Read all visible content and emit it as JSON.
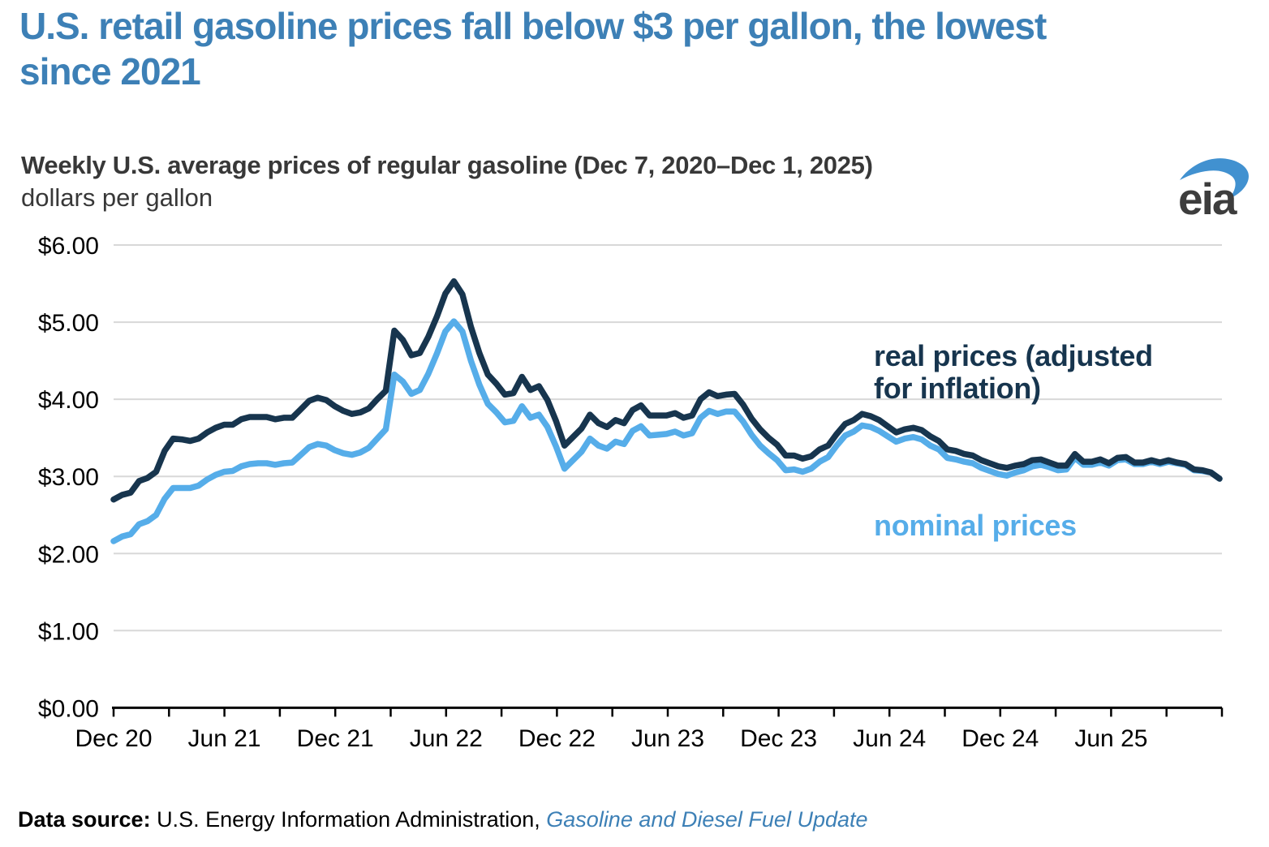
{
  "header": {
    "title_lines": [
      "U.S. retail gasoline prices fall below $3 per gallon, the lowest",
      "since 2021"
    ],
    "logo_text": "eia"
  },
  "annotations": {
    "real_label_lines": [
      "real prices (adjusted",
      "for inflation)"
    ],
    "nominal_label": "nominal prices"
  },
  "source": {
    "prefix": "Data source: ",
    "agency": "U.S. Energy Information Administration, ",
    "link_text": "Gasoline and Diesel Fuel Update"
  },
  "colors": {
    "title_blue": "#3d80b6",
    "real_navy": "#17354e",
    "nominal_blue": "#56ade9",
    "gridline_gray": "#d8d8d8",
    "axis_black": "#000000",
    "heading_gray": "#383838",
    "source_link_blue": "#3d80b6",
    "logo_swoosh_blue": "#4191d0",
    "logo_text_gray": "#3d3d3d"
  },
  "chart_data": {
    "type": "line",
    "title": "Weekly U.S. average prices of regular gasoline (Dec 7, 2020–Dec 1, 2025)",
    "ylabel": "dollars per gallon",
    "ylim": [
      0,
      6
    ],
    "yticks": [
      "$0.00",
      "$1.00",
      "$2.00",
      "$3.00",
      "$4.00",
      "$5.00",
      "$6.00"
    ],
    "xtick_labels": [
      "Dec 20",
      "Jun 21",
      "Dec 21",
      "Jun 22",
      "Dec 22",
      "Jun 23",
      "Dec 23",
      "Jun 24",
      "Dec 24",
      "Jun 25"
    ],
    "x_start": "Dec 7, 2020",
    "x_end": "Dec 1, 2025",
    "sampling": "biweekly",
    "grid": "horizontal",
    "legend_position": "inline annotations on chart",
    "series": [
      {
        "name": "nominal prices",
        "color": "#56ade9",
        "values": [
          2.16,
          2.22,
          2.25,
          2.38,
          2.42,
          2.5,
          2.71,
          2.85,
          2.85,
          2.85,
          2.88,
          2.96,
          3.02,
          3.06,
          3.07,
          3.13,
          3.16,
          3.17,
          3.17,
          3.15,
          3.17,
          3.18,
          3.28,
          3.38,
          3.42,
          3.4,
          3.34,
          3.3,
          3.28,
          3.31,
          3.37,
          3.49,
          3.61,
          4.32,
          4.23,
          4.07,
          4.12,
          4.33,
          4.59,
          4.88,
          5.01,
          4.88,
          4.5,
          4.19,
          3.94,
          3.83,
          3.7,
          3.72,
          3.91,
          3.76,
          3.8,
          3.64,
          3.39,
          3.1,
          3.21,
          3.32,
          3.49,
          3.4,
          3.36,
          3.45,
          3.42,
          3.59,
          3.65,
          3.53,
          3.54,
          3.55,
          3.58,
          3.53,
          3.56,
          3.76,
          3.85,
          3.81,
          3.84,
          3.84,
          3.71,
          3.54,
          3.4,
          3.3,
          3.21,
          3.08,
          3.09,
          3.06,
          3.1,
          3.19,
          3.25,
          3.4,
          3.53,
          3.58,
          3.66,
          3.64,
          3.59,
          3.52,
          3.45,
          3.49,
          3.51,
          3.48,
          3.4,
          3.35,
          3.24,
          3.22,
          3.19,
          3.17,
          3.11,
          3.07,
          3.03,
          3.01,
          3.05,
          3.08,
          3.13,
          3.15,
          3.12,
          3.08,
          3.09,
          3.24,
          3.15,
          3.15,
          3.18,
          3.14,
          3.21,
          3.22,
          3.16,
          3.16,
          3.19,
          3.16,
          3.19,
          3.17,
          3.15,
          3.08,
          3.07,
          3.05,
          2.97
        ]
      },
      {
        "name": "real prices (adjusted for inflation)",
        "color": "#17354e",
        "values": [
          2.7,
          2.76,
          2.79,
          2.94,
          2.98,
          3.06,
          3.33,
          3.49,
          3.48,
          3.46,
          3.49,
          3.57,
          3.63,
          3.67,
          3.67,
          3.74,
          3.77,
          3.77,
          3.77,
          3.74,
          3.76,
          3.76,
          3.87,
          3.98,
          4.02,
          3.99,
          3.91,
          3.85,
          3.81,
          3.83,
          3.88,
          4.0,
          4.11,
          4.89,
          4.77,
          4.57,
          4.6,
          4.81,
          5.07,
          5.37,
          5.53,
          5.36,
          4.94,
          4.6,
          4.32,
          4.2,
          4.06,
          4.08,
          4.29,
          4.12,
          4.17,
          3.99,
          3.72,
          3.4,
          3.51,
          3.62,
          3.8,
          3.69,
          3.64,
          3.73,
          3.69,
          3.86,
          3.92,
          3.79,
          3.79,
          3.79,
          3.82,
          3.76,
          3.79,
          4.0,
          4.09,
          4.04,
          4.06,
          4.07,
          3.93,
          3.75,
          3.61,
          3.5,
          3.41,
          3.27,
          3.27,
          3.23,
          3.26,
          3.35,
          3.4,
          3.55,
          3.68,
          3.73,
          3.81,
          3.78,
          3.73,
          3.65,
          3.57,
          3.61,
          3.63,
          3.6,
          3.52,
          3.46,
          3.35,
          3.33,
          3.29,
          3.27,
          3.21,
          3.17,
          3.13,
          3.11,
          3.14,
          3.16,
          3.21,
          3.22,
          3.18,
          3.14,
          3.14,
          3.29,
          3.19,
          3.19,
          3.22,
          3.17,
          3.24,
          3.25,
          3.18,
          3.18,
          3.21,
          3.18,
          3.21,
          3.18,
          3.16,
          3.09,
          3.08,
          3.05,
          2.97
        ]
      }
    ]
  }
}
